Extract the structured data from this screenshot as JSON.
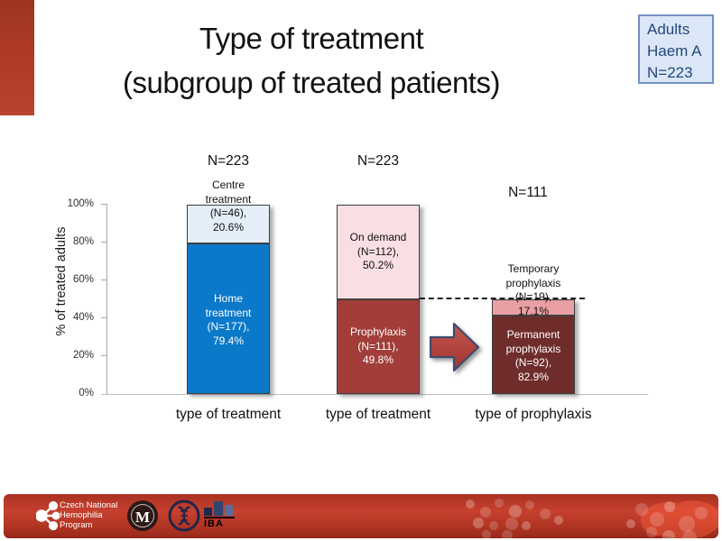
{
  "header": {
    "title_lines": [
      "Type of treatment",
      "(subgroup of treated patients)"
    ],
    "corner_box_lines": [
      "Adults",
      "Haem A",
      "N=223"
    ]
  },
  "chart": {
    "y_axis_label": "% of treated adults",
    "y_ticks": [
      "100%",
      "80%",
      "60%",
      "40%",
      "20%",
      "0%"
    ],
    "bar1": {
      "n_label": "N=223",
      "x_label": "type of treatment",
      "top_lines": [
        "Centre",
        "treatment",
        "(N=46),",
        "20.6%"
      ],
      "bottom_lines": [
        "Home",
        "treatment",
        "(N=177),",
        "79.4%"
      ]
    },
    "bar2": {
      "n_label": "N=223",
      "x_label": "type of treatment",
      "top_lines": [
        "On demand",
        "(N=112),",
        "50.2%"
      ],
      "bottom_lines": [
        "Prophylaxis",
        "(N=111),",
        "49.8%"
      ]
    },
    "bar3": {
      "n_label": "N=111",
      "x_label": "type of prophylaxis",
      "top_lines": [
        "Temporary",
        "prophylaxis",
        "(N=19),",
        "17.1%"
      ],
      "bottom_lines": [
        "Permanent",
        "prophylaxis",
        "(N=92),",
        "82.9%"
      ]
    }
  },
  "footer": {
    "program_lines": [
      "Czech National",
      "Hemophilia",
      "Program"
    ],
    "iba_label": "IBA"
  },
  "chart_data": {
    "type": "bar",
    "subtype": "stacked-percentage",
    "title": "Type of treatment (subgroup of treated patients)",
    "population_box": "Adults Haem A N=223",
    "ylabel": "% of treated adults",
    "ylim": [
      0,
      100
    ],
    "y_ticks_percent": [
      0,
      20,
      40,
      60,
      80,
      100
    ],
    "grid": false,
    "legend_position": "none (labels inside segments)",
    "categories": [
      "type of treatment",
      "type of treatment",
      "type of prophylaxis"
    ],
    "bars": [
      {
        "category": "type of treatment",
        "n_total": 223,
        "n_label": "N=223",
        "total_height_percent": 100,
        "segments": [
          {
            "label": "Home treatment",
            "n": 177,
            "percent": 79.4,
            "color": "#0b79c9",
            "text_color": "#ffffff"
          },
          {
            "label": "Centre treatment",
            "n": 46,
            "percent": 20.6,
            "color": "#e3eef9",
            "text_color": "#111111"
          }
        ]
      },
      {
        "category": "type of treatment",
        "n_total": 223,
        "n_label": "N=223",
        "total_height_percent": 100,
        "segments": [
          {
            "label": "Prophylaxis",
            "n": 111,
            "percent": 49.8,
            "color": "#a23d39",
            "text_color": "#ffffff"
          },
          {
            "label": "On demand",
            "n": 112,
            "percent": 50.2,
            "color": "#f9dfe2",
            "text_color": "#111111"
          }
        ]
      },
      {
        "category": "type of prophylaxis",
        "n_total": 111,
        "n_label": "N=111",
        "total_height_percent": 49.8,
        "segments": [
          {
            "label": "Permanent prophylaxis",
            "n": 92,
            "percent": 82.9,
            "color": "#6e2c2a",
            "text_color": "#ffffff"
          },
          {
            "label": "Temporary prophylaxis",
            "n": 19,
            "percent": 17.1,
            "color": "#e99fa3",
            "text_color": "#111111"
          }
        ]
      }
    ],
    "annotations": [
      "dashed horizontal line at 49.8% from prophylaxis bar to type-of-prophylaxis bar",
      "red block arrow pointing right from bar 2 to bar 3"
    ]
  }
}
